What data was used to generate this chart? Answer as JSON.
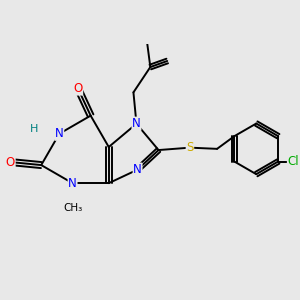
{
  "bg_color": "#e8e8e8",
  "atom_colors": {
    "N": "#0000ff",
    "O": "#ff0000",
    "S": "#ccaa00",
    "Cl": "#00aa00",
    "C": "#000000",
    "H": "#008080"
  },
  "bond_lw": 1.4,
  "font_size": 8.5,
  "fig_size": [
    3.0,
    3.0
  ],
  "dpi": 100,
  "xlim": [
    -1.8,
    3.0
  ],
  "ylim": [
    -1.5,
    2.0
  ]
}
